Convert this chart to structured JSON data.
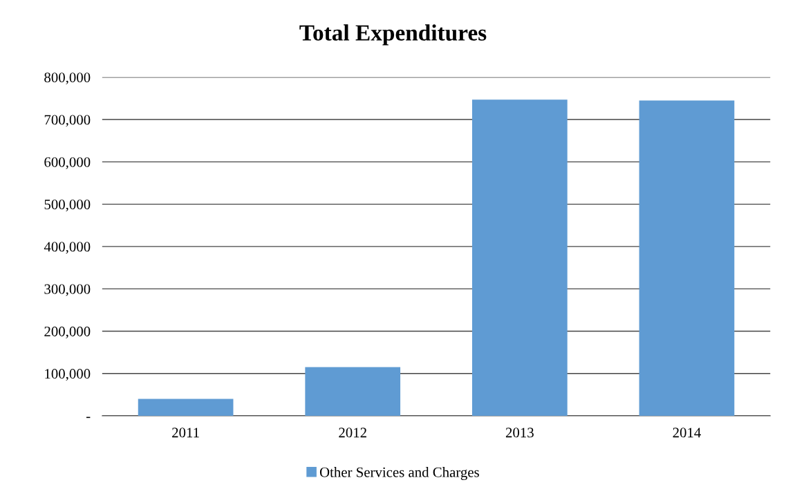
{
  "chart_data": {
    "type": "bar",
    "title": "Total Expenditures",
    "categories": [
      "2011",
      "2012",
      "2013",
      "2014"
    ],
    "series": [
      {
        "name": "Other Services and Charges",
        "color": "#5f9bd3",
        "values": [
          40000,
          115000,
          747000,
          745000
        ]
      }
    ],
    "ylim": [
      0,
      800000
    ],
    "yticks": [
      {
        "value": 0,
        "label": "-"
      },
      {
        "value": 100000,
        "label": "100,000"
      },
      {
        "value": 200000,
        "label": "200,000"
      },
      {
        "value": 300000,
        "label": "300,000"
      },
      {
        "value": 400000,
        "label": "400,000"
      },
      {
        "value": 500000,
        "label": "500,000"
      },
      {
        "value": 600000,
        "label": "600,000"
      },
      {
        "value": 700000,
        "label": "700,000"
      },
      {
        "value": 800000,
        "label": "800,000"
      }
    ],
    "grid": "y",
    "legend": "bottom"
  }
}
